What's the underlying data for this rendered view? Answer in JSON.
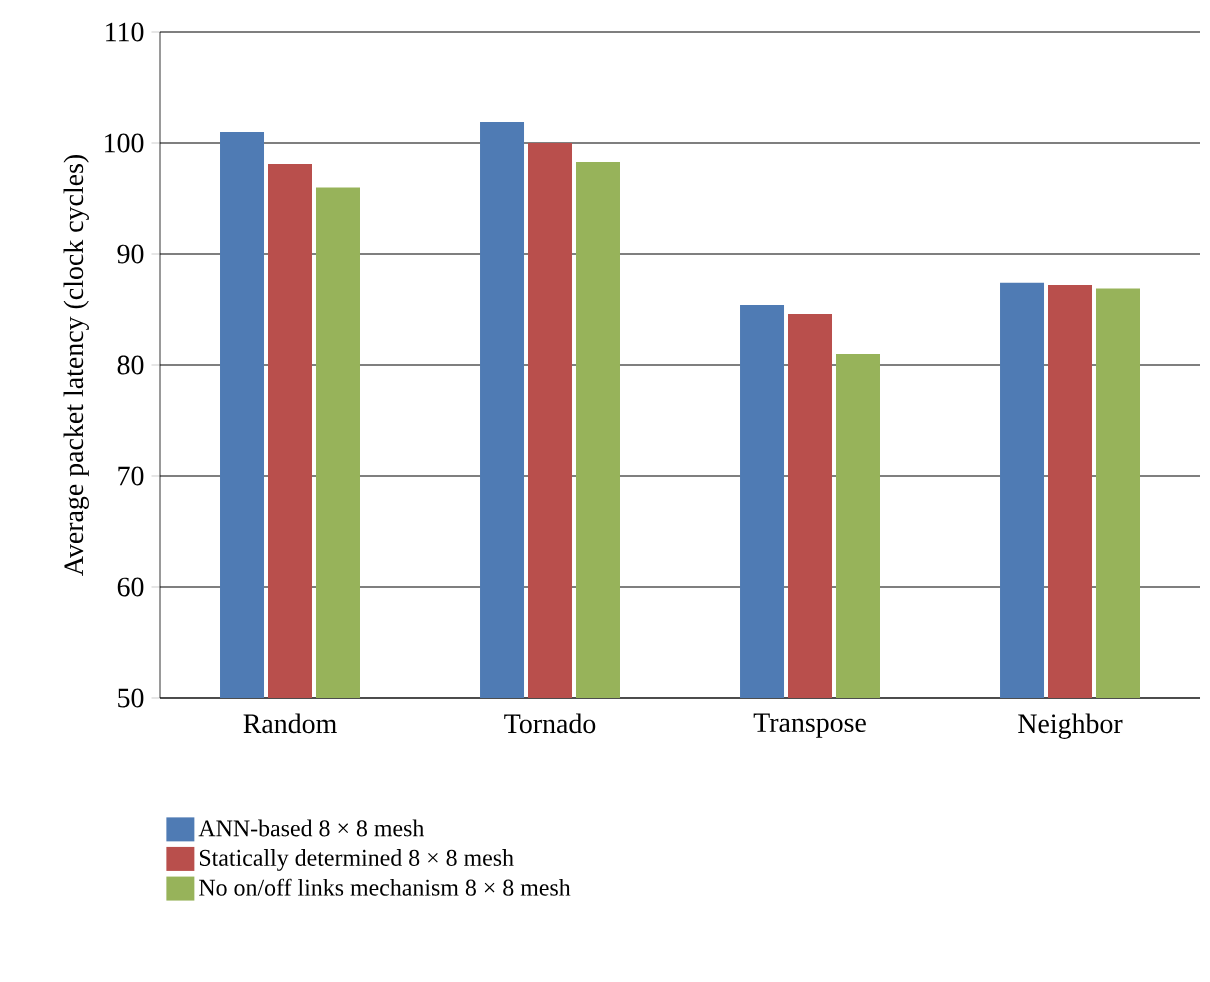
{
  "chart_data": {
    "type": "bar",
    "ylabel": "Average packet latency (clock cycles)",
    "categories": [
      "Random",
      "Tornado",
      "Transpose",
      "Neighbor"
    ],
    "series": [
      {
        "name": "ANN-based 8 × 8 mesh",
        "color": "#4f7bb4",
        "values": [
          101.0,
          101.9,
          85.4,
          87.4
        ]
      },
      {
        "name": "Statically determined 8 × 8 mesh",
        "color": "#b94f4c",
        "values": [
          98.1,
          100.0,
          84.6,
          87.2
        ]
      },
      {
        "name": "No on/off links mechanism 8 × 8 mesh",
        "color": "#97b35a",
        "values": [
          96.0,
          98.3,
          81.0,
          86.9
        ]
      }
    ],
    "ylim": [
      50,
      110
    ],
    "yticks": [
      50,
      60,
      70,
      80,
      90,
      100,
      110
    ],
    "grid": "y",
    "legend": "bottom"
  }
}
